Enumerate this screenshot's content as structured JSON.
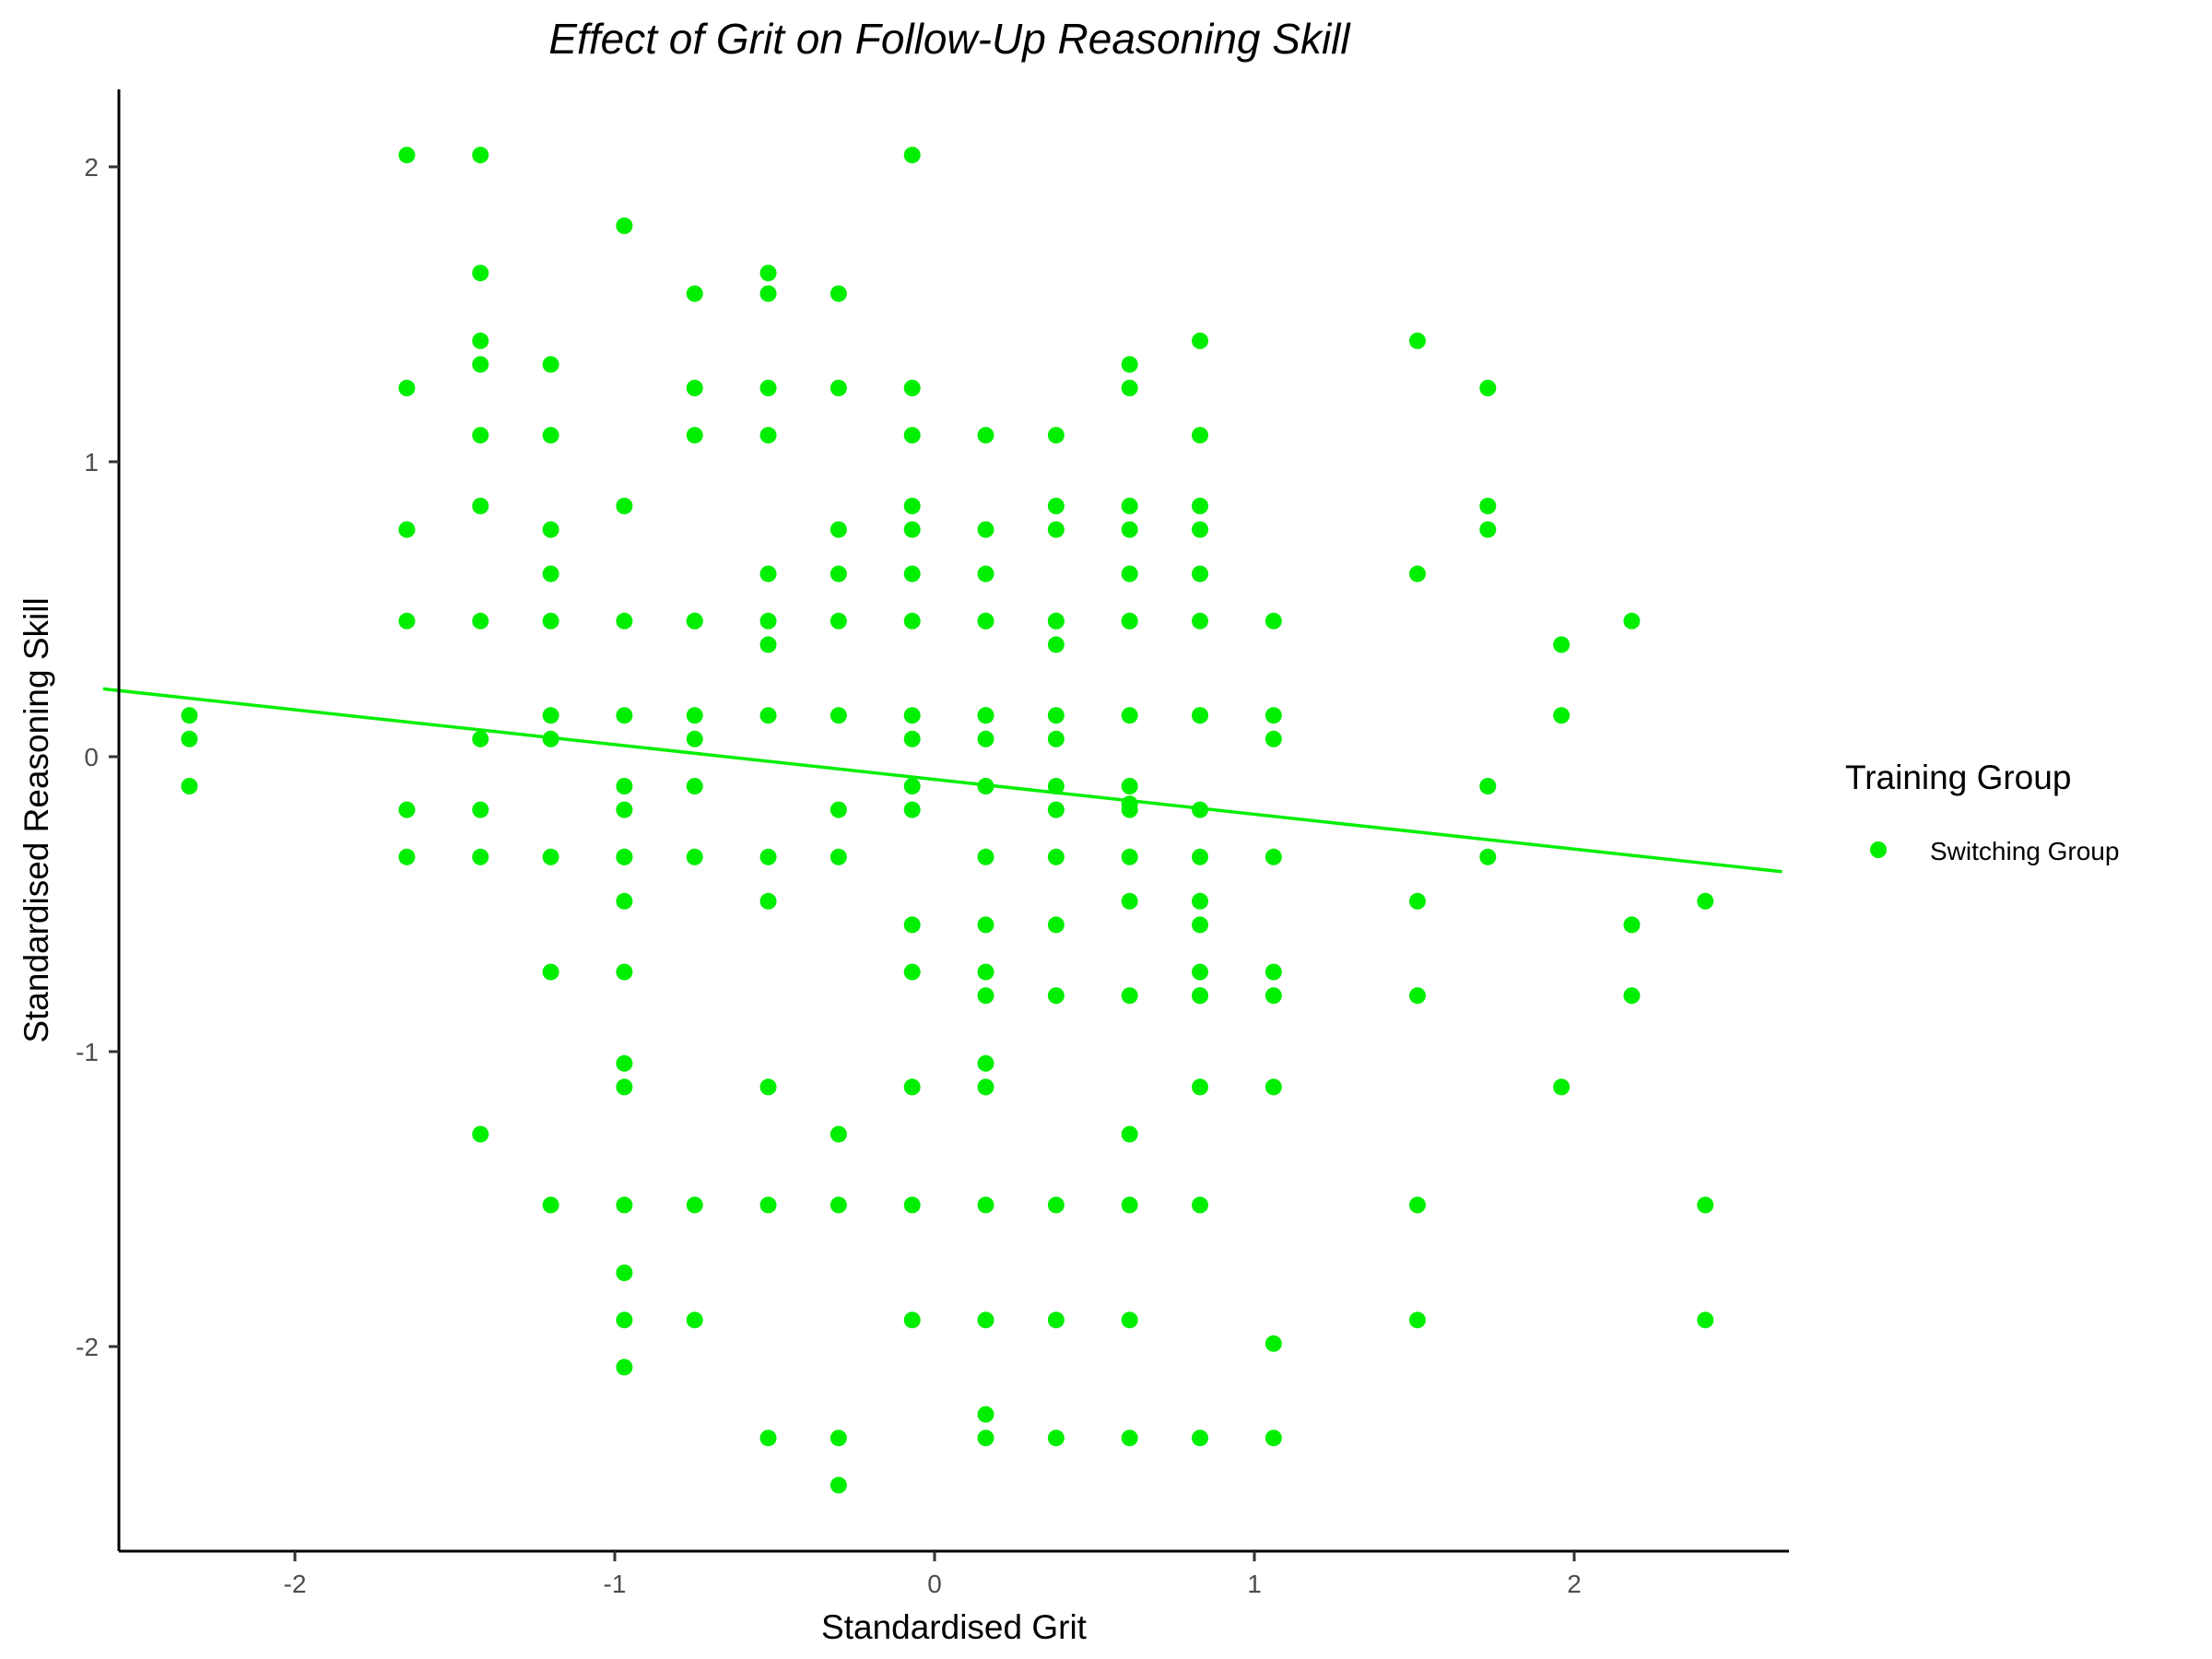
{
  "chart_data": {
    "type": "scatter",
    "title": "Effect of Grit on Follow-Up Reasoning Skill",
    "xlabel": "Standardised Grit",
    "ylabel": "Standardised Reasoning Skill",
    "xlim": [
      -2.6,
      2.65
    ],
    "ylim": [
      -2.7,
      2.25
    ],
    "xticks": [
      -2,
      -1,
      0,
      1,
      2
    ],
    "yticks": [
      -2,
      -1,
      0,
      1,
      2
    ],
    "xtick_labels": [
      "-2",
      "-1",
      "0",
      "1",
      "2"
    ],
    "ytick_labels": [
      "-2",
      "-1",
      "0",
      "1",
      "2"
    ],
    "grid": false,
    "legend": {
      "title": "Training Group",
      "placement": "right",
      "entries": [
        "Switching Group"
      ]
    },
    "colors": {
      "points": "#00ee00",
      "fit_line": "#00ee00"
    },
    "fit_line": {
      "x": [
        -2.6,
        2.65
      ],
      "y": [
        0.23,
        -0.39
      ]
    },
    "series": [
      {
        "name": "Switching Group",
        "x": [
          -2.33,
          -2.33,
          -2.33,
          -1.65,
          -1.65,
          -1.65,
          -1.65,
          -1.65,
          -1.65,
          -1.42,
          -1.42,
          -1.42,
          -1.42,
          -1.42,
          -1.42,
          -1.42,
          -1.42,
          -1.42,
          -1.42,
          -1.42,
          -1.2,
          -1.2,
          -1.2,
          -1.2,
          -1.2,
          -1.2,
          -1.2,
          -1.2,
          -1.2,
          -1.2,
          -0.97,
          -0.97,
          -0.97,
          -0.97,
          -0.97,
          -0.97,
          -0.97,
          -0.97,
          -0.97,
          -0.97,
          -0.97,
          -0.97,
          -0.97,
          -0.97,
          -0.97,
          -0.97,
          -0.75,
          -0.75,
          -0.75,
          -0.75,
          -0.75,
          -0.75,
          -0.75,
          -0.75,
          -0.75,
          -0.75,
          -0.75,
          -0.52,
          -0.52,
          -0.52,
          -0.52,
          -0.52,
          -0.52,
          -0.52,
          -0.52,
          -0.52,
          -0.52,
          -0.52,
          -0.52,
          -0.52,
          -0.3,
          -0.3,
          -0.3,
          -0.3,
          -0.3,
          -0.3,
          -0.3,
          -0.3,
          -0.3,
          -0.3,
          -0.3,
          -0.3,
          -0.07,
          -0.07,
          -0.07,
          -0.07,
          -0.07,
          -0.07,
          -0.07,
          -0.07,
          -0.07,
          -0.07,
          -0.07,
          -0.07,
          -0.07,
          -0.07,
          -0.07,
          -0.07,
          0.16,
          0.16,
          0.16,
          0.16,
          0.16,
          0.16,
          0.16,
          0.16,
          0.16,
          0.16,
          0.16,
          0.16,
          0.16,
          0.16,
          0.16,
          0.16,
          0.16,
          0.16,
          0.16,
          0.38,
          0.38,
          0.38,
          0.38,
          0.38,
          0.38,
          0.38,
          0.38,
          0.38,
          0.38,
          0.38,
          0.38,
          0.38,
          0.38,
          0.38,
          0.38,
          0.61,
          0.61,
          0.61,
          0.61,
          0.61,
          0.61,
          0.61,
          0.61,
          0.61,
          0.61,
          0.61,
          0.61,
          0.61,
          0.61,
          0.61,
          0.61,
          0.61,
          0.61,
          0.83,
          0.83,
          0.83,
          0.83,
          0.83,
          0.83,
          0.83,
          0.83,
          0.83,
          0.83,
          0.83,
          0.83,
          0.83,
          0.83,
          0.83,
          0.83,
          0.83,
          0.83,
          1.06,
          1.06,
          1.06,
          1.06,
          1.06,
          1.06,
          1.06,
          1.06,
          1.06,
          1.51,
          1.51,
          1.51,
          1.51,
          1.51,
          1.51,
          1.73,
          1.73,
          1.73,
          1.73,
          1.73,
          1.96,
          1.96,
          1.96,
          2.18,
          2.18,
          2.18,
          2.41,
          2.41,
          2.41
        ],
        "y": [
          0.14,
          0.06,
          -0.1,
          2.04,
          1.25,
          0.77,
          0.46,
          -0.18,
          -0.34,
          2.04,
          1.64,
          1.41,
          1.33,
          1.09,
          0.85,
          0.46,
          0.06,
          -0.18,
          -0.34,
          -1.28,
          1.33,
          1.09,
          0.77,
          0.62,
          0.46,
          0.14,
          0.06,
          -0.34,
          -0.73,
          -1.52,
          1.8,
          0.85,
          0.46,
          0.14,
          -0.1,
          -0.18,
          -0.34,
          -0.49,
          -0.73,
          -1.04,
          -1.12,
          -1.52,
          -1.75,
          -1.91,
          -2.07,
          -0.34,
          1.57,
          1.25,
          1.09,
          0.46,
          0.14,
          0.06,
          -0.1,
          -0.34,
          -1.52,
          -1.91,
          0.46,
          1.64,
          1.57,
          1.25,
          1.09,
          0.62,
          0.46,
          0.38,
          0.14,
          -0.34,
          -0.49,
          -1.12,
          -1.52,
          -2.31,
          1.57,
          1.25,
          0.77,
          0.62,
          0.46,
          0.14,
          -0.18,
          -0.34,
          -1.28,
          -1.52,
          -2.31,
          -2.47,
          2.04,
          1.25,
          1.09,
          0.85,
          0.77,
          0.62,
          0.46,
          0.14,
          0.06,
          -0.1,
          -0.18,
          -0.57,
          -0.73,
          -1.12,
          -1.52,
          -1.91,
          1.09,
          0.77,
          0.62,
          0.46,
          0.14,
          0.06,
          -0.1,
          -0.34,
          -0.57,
          -0.73,
          -0.81,
          -1.04,
          -1.12,
          -1.52,
          -1.91,
          -2.23,
          -2.31,
          0.46,
          0.14,
          1.09,
          0.85,
          0.77,
          0.46,
          0.38,
          0.14,
          0.06,
          -0.1,
          -0.18,
          -0.34,
          -0.57,
          -0.81,
          -1.52,
          -1.91,
          -2.31,
          0.46,
          1.33,
          1.25,
          0.85,
          0.77,
          0.62,
          0.46,
          0.14,
          -0.1,
          -0.16,
          -0.18,
          -0.34,
          -0.49,
          -0.81,
          -1.28,
          -1.52,
          -1.91,
          -2.31,
          0.46,
          1.41,
          1.09,
          0.85,
          0.77,
          0.62,
          0.46,
          0.14,
          -0.18,
          -0.34,
          -0.49,
          -0.57,
          -0.73,
          -0.81,
          -1.12,
          -1.52,
          -2.31,
          0.14,
          -0.81,
          0.46,
          0.14,
          0.06,
          -0.34,
          -0.73,
          -0.81,
          -1.12,
          -1.99,
          -2.31,
          1.41,
          0.62,
          -0.49,
          -0.81,
          -1.52,
          -1.91,
          1.25,
          0.85,
          0.77,
          -0.1,
          -0.34,
          0.38,
          0.14,
          -1.12,
          0.46,
          -0.57,
          -0.81,
          -0.49,
          -1.52,
          -1.91
        ]
      }
    ]
  }
}
